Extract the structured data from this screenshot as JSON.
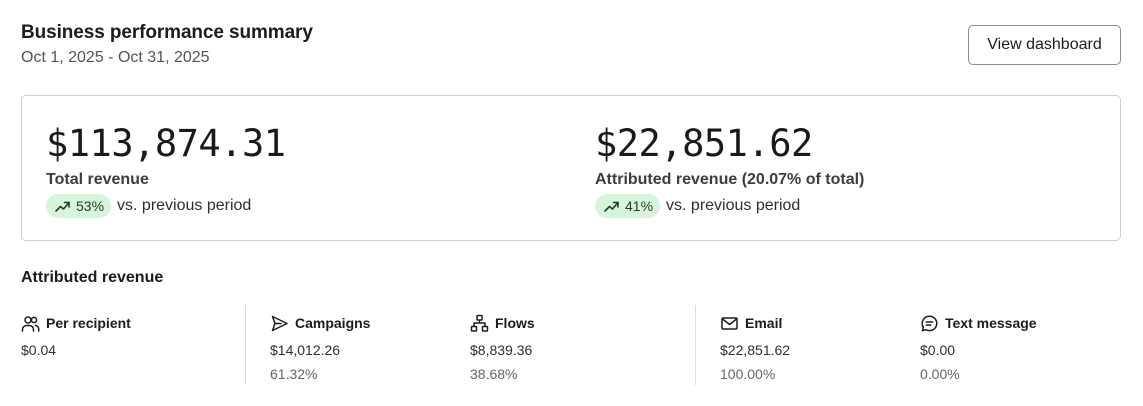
{
  "header": {
    "title": "Business performance summary",
    "date_range": "Oct 1, 2025 - Oct 31, 2025",
    "view_button_label": "View dashboard"
  },
  "summary": {
    "total": {
      "value": "$113,874.31",
      "label": "Total revenue",
      "change": "53%",
      "compare_text": "vs. previous period",
      "trend_icon": "trend-up-icon"
    },
    "attributed": {
      "value": "$22,851.62",
      "label": "Attributed revenue (20.07% of total)",
      "change": "41%",
      "compare_text": "vs. previous period",
      "trend_icon": "trend-up-icon"
    }
  },
  "attributed_section": {
    "title": "Attributed revenue",
    "stats": [
      {
        "icon": "users-icon",
        "label": "Per recipient",
        "value": "$0.04",
        "percent": ""
      },
      {
        "icon": "send-icon",
        "label": "Campaigns",
        "value": "$14,012.26",
        "percent": "61.32%"
      },
      {
        "icon": "flow-icon",
        "label": "Flows",
        "value": "$8,839.36",
        "percent": "38.68%"
      },
      {
        "icon": "mail-icon",
        "label": "Email",
        "value": "$22,851.62",
        "percent": "100.00%"
      },
      {
        "icon": "chat-icon",
        "label": "Text message",
        "value": "$0.00",
        "percent": "0.00%"
      }
    ]
  },
  "colors": {
    "badge_bg": "#d7f5dd",
    "border": "#cfcfcf",
    "text": "#1a1a1a"
  }
}
